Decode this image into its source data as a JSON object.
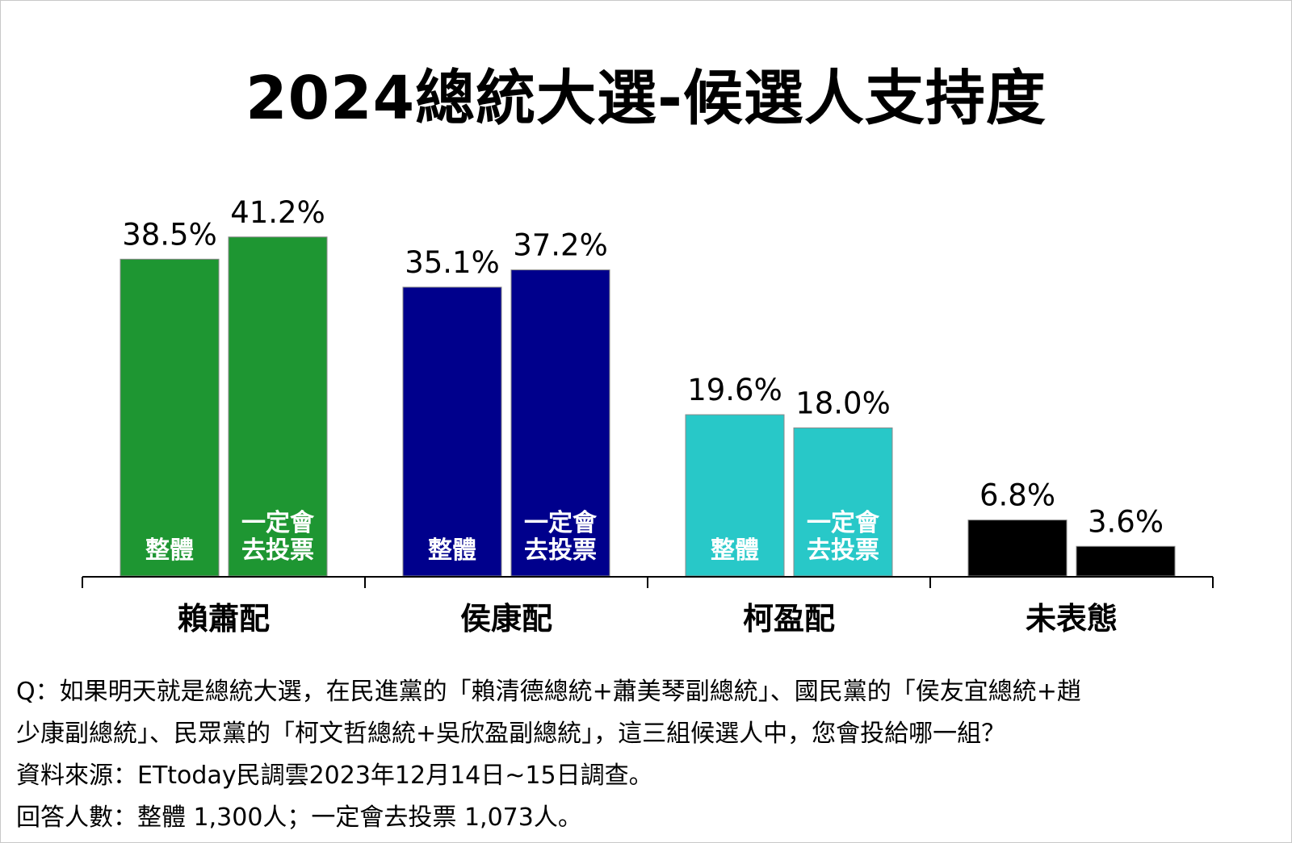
{
  "title": "2024總統大選-候選人支持度",
  "colors": {
    "green": "#1e9632",
    "navy": "#00008c",
    "cyan": "#28c8c8",
    "black": "#000000"
  },
  "chart_data": {
    "type": "bar",
    "title": "2024總統大選-候選人支持度",
    "categories": [
      "賴蕭配",
      "侯康配",
      "柯盈配",
      "未表態"
    ],
    "bar_labels": [
      "整體",
      "一定會\n去投票"
    ],
    "series": [
      {
        "name": "整體",
        "values": [
          38.5,
          35.1,
          19.6,
          6.8
        ],
        "labels": [
          "38.5%",
          "35.1%",
          "19.6%",
          "6.8%"
        ]
      },
      {
        "name": "一定會去投票",
        "values": [
          41.2,
          37.2,
          18.0,
          3.6
        ],
        "labels": [
          "41.2%",
          "37.2%",
          "18.0%",
          "3.6%"
        ]
      }
    ],
    "category_colors": [
      "#1e9632",
      "#00008c",
      "#28c8c8",
      "#000000"
    ],
    "inner_labels_shown": [
      true,
      true,
      true,
      false
    ],
    "ylim": [
      0,
      45
    ],
    "grid": false,
    "legend": "none"
  },
  "notes": {
    "line1": "Q：如果明天就是總統大選，在民進黨的「賴清德總統+蕭美琴副總統」、國民黨的「侯友宜總統+趙",
    "line2": "少康副總統」、民眾黨的「柯文哲總統+吳欣盈副總統」，這三組候選人中，您會投給哪一組？",
    "line3": "資料來源：ETtoday民調雲2023年12月14日~15日調查。",
    "line4": "回答人數：整體 1,300人；一定會去投票 1,073人。"
  }
}
